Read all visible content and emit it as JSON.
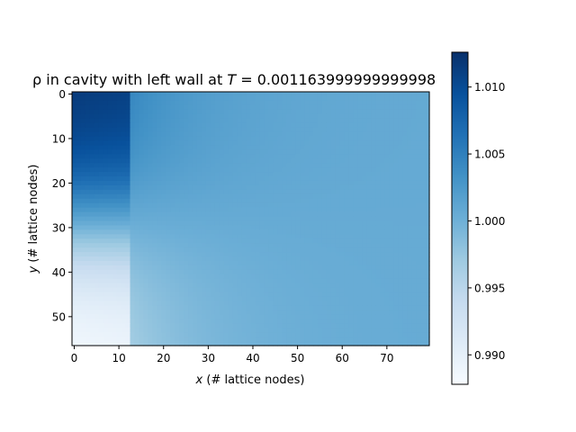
{
  "chart_data": {
    "type": "heatmap",
    "title_prefix": "ρ in cavity with left wall at ",
    "title_var": "T",
    "title_value": " = 0.001163999999999998",
    "xlabel_var": "x",
    "xlabel_rest": " (# lattice nodes)",
    "ylabel_var": "y",
    "ylabel_rest": " (# lattice nodes)",
    "x_range": [
      -0.5,
      79.5
    ],
    "y_range": [
      -0.5,
      56.5
    ],
    "y_inverted": true,
    "x_ticks": [
      0,
      10,
      20,
      30,
      40,
      50,
      60,
      70
    ],
    "y_ticks": [
      0,
      10,
      20,
      30,
      40,
      50
    ],
    "colormap": "Blues",
    "colorbar": {
      "vmin": 0.9878,
      "vmax": 1.0126,
      "ticks": [
        0.99,
        0.995,
        1.0,
        1.005,
        1.01
      ],
      "tick_labels": [
        "0.990",
        "0.995",
        "1.000",
        "1.005",
        "1.010"
      ]
    },
    "field_description": "density rho(x,y): high (~1.012) at top-left corner for x<13, low (~0.988) at bottom-left for x<13, smoothly relaxing to ~1.000 elsewhere",
    "sample_values": {
      "top_left_corner": 1.012,
      "bottom_left_corner": 0.988,
      "left_band_midheight_y30": 1.0,
      "right_side": 1.0,
      "step_x": 13
    }
  }
}
